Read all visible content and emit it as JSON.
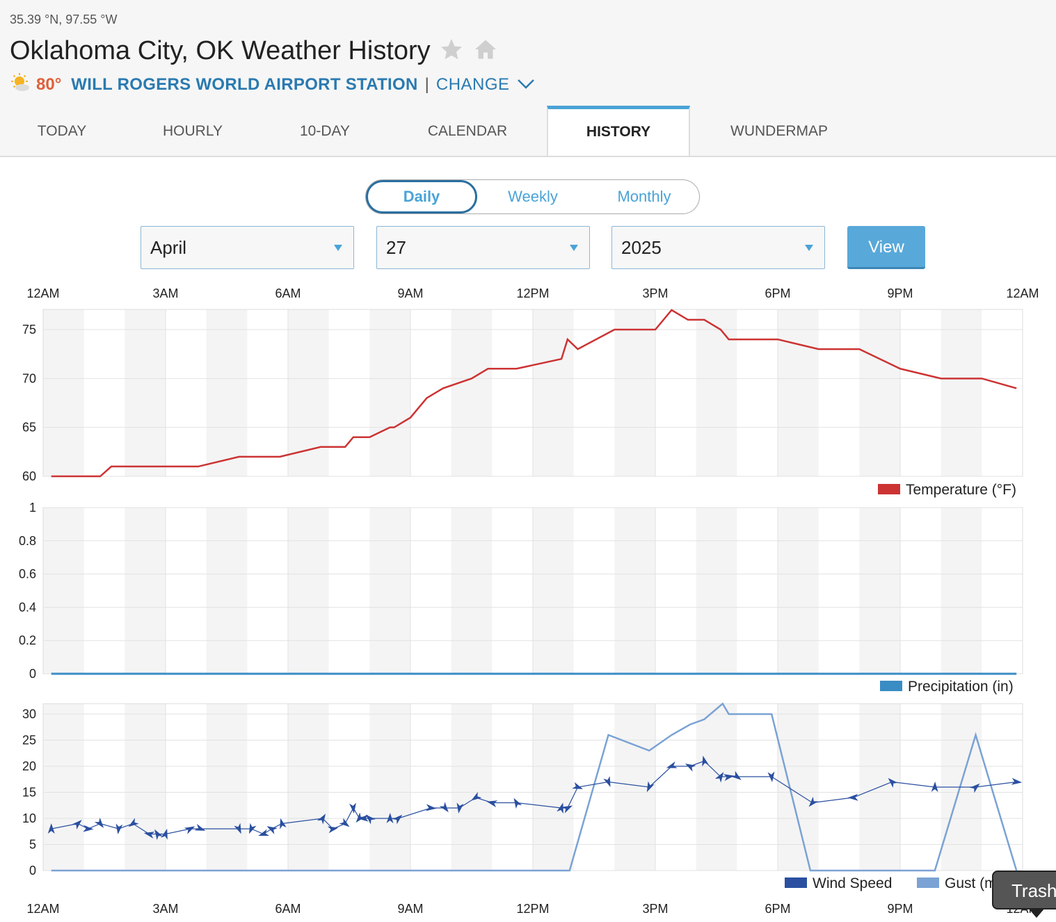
{
  "header": {
    "coords": "35.39 °N, 97.55 °W",
    "title": "Oklahoma City, OK Weather History",
    "current_temp": "80°",
    "station": "WILL ROGERS WORLD AIRPORT STATION",
    "separator": "|",
    "change_label": "CHANGE",
    "icons": [
      "star-icon",
      "home-icon",
      "partly-sunny-icon",
      "chevron-down-icon"
    ]
  },
  "tabs": [
    "TODAY",
    "HOURLY",
    "10-DAY",
    "CALENDAR",
    "HISTORY",
    "WUNDERMAP"
  ],
  "active_tab": "HISTORY",
  "period_toggle": {
    "daily": "Daily",
    "weekly": "Weekly",
    "monthly": "Monthly",
    "active": "Daily"
  },
  "date_selector": {
    "month": "April",
    "day": "27",
    "year": "2025",
    "view_label": "View"
  },
  "colors": {
    "temperature": "#cc3333",
    "precipitation": "#3a8cc4",
    "wind": "#2a4fa0",
    "gust": "#7ba2d4",
    "accent": "#4aa3d6"
  },
  "tooltip": "Trash",
  "chart_data": [
    {
      "type": "line",
      "name": "temperature",
      "x_ticks": [
        "12AM",
        "3AM",
        "6AM",
        "9AM",
        "12PM",
        "3PM",
        "6PM",
        "9PM",
        "12AM"
      ],
      "ylim": [
        59,
        77
      ],
      "y_ticks": [
        60,
        65,
        70,
        75
      ],
      "grid": true,
      "legend": "bottom-right",
      "series": [
        {
          "name": "Temperature (°F)",
          "points": [
            [
              0.2,
              60
            ],
            [
              1.4,
              60
            ],
            [
              1.67,
              61
            ],
            [
              3.8,
              61
            ],
            [
              4.8,
              62
            ],
            [
              5.8,
              62
            ],
            [
              6.8,
              63
            ],
            [
              7.4,
              63
            ],
            [
              7.6,
              64
            ],
            [
              8,
              64
            ],
            [
              8.5,
              65
            ],
            [
              8.6,
              65
            ],
            [
              9.0,
              66
            ],
            [
              9.4,
              68
            ],
            [
              9.8,
              69
            ],
            [
              10.5,
              70
            ],
            [
              10.9,
              71
            ],
            [
              11.6,
              71
            ],
            [
              12.7,
              72
            ],
            [
              12.85,
              74
            ],
            [
              13.1,
              73
            ],
            [
              14.0,
              75
            ],
            [
              15.0,
              75
            ],
            [
              15.4,
              77
            ],
            [
              15.8,
              76
            ],
            [
              16.2,
              76
            ],
            [
              16.6,
              75
            ],
            [
              16.8,
              74
            ],
            [
              17.0,
              74
            ],
            [
              18.0,
              74
            ],
            [
              19.0,
              73
            ],
            [
              20.0,
              73
            ],
            [
              21.0,
              71
            ],
            [
              22.0,
              70
            ],
            [
              23.0,
              70
            ],
            [
              23.85,
              69
            ]
          ]
        }
      ]
    },
    {
      "type": "line",
      "name": "precipitation",
      "x_ticks": [
        "12AM",
        "3AM",
        "6AM",
        "9AM",
        "12PM",
        "3PM",
        "6PM",
        "9PM",
        "12AM"
      ],
      "ylim": [
        0,
        1
      ],
      "y_ticks": [
        0,
        0.2,
        0.4,
        0.6,
        0.8,
        1
      ],
      "grid": true,
      "legend": "bottom-right",
      "series": [
        {
          "name": "Precipitation (in)",
          "points": [
            [
              0.2,
              0
            ],
            [
              23.85,
              0
            ]
          ]
        }
      ]
    },
    {
      "type": "line",
      "name": "wind",
      "x_ticks": [
        "12AM",
        "3AM",
        "6AM",
        "9AM",
        "12PM",
        "3PM",
        "6PM",
        "9PM",
        "12AM"
      ],
      "ylim": [
        0,
        32
      ],
      "y_ticks": [
        0,
        5,
        10,
        15,
        20,
        25,
        30
      ],
      "grid": true,
      "legend": "bottom-right",
      "series": [
        {
          "name": "Wind Speed",
          "points": [
            [
              0.2,
              8
            ],
            [
              0.85,
              9
            ],
            [
              1.1,
              8
            ],
            [
              1.4,
              9
            ],
            [
              1.85,
              8
            ],
            [
              2.2,
              9
            ],
            [
              2.6,
              7
            ],
            [
              2.8,
              7
            ],
            [
              3.0,
              7
            ],
            [
              3.6,
              8
            ],
            [
              3.85,
              8
            ],
            [
              4.8,
              8
            ],
            [
              5.1,
              8
            ],
            [
              5.4,
              7
            ],
            [
              5.6,
              8
            ],
            [
              5.85,
              9
            ],
            [
              6.85,
              10
            ],
            [
              7.1,
              8
            ],
            [
              7.4,
              9
            ],
            [
              7.6,
              12
            ],
            [
              7.75,
              10
            ],
            [
              7.85,
              10
            ],
            [
              8.0,
              10
            ],
            [
              8.5,
              10
            ],
            [
              8.7,
              10
            ],
            [
              9.5,
              12
            ],
            [
              9.85,
              12
            ],
            [
              10.2,
              12
            ],
            [
              10.6,
              14
            ],
            [
              11.0,
              13
            ],
            [
              11.6,
              13
            ],
            [
              12.7,
              12
            ],
            [
              12.85,
              12
            ],
            [
              13.1,
              16
            ],
            [
              13.85,
              17
            ],
            [
              14.85,
              16
            ],
            [
              15.4,
              20
            ],
            [
              15.85,
              20
            ],
            [
              16.2,
              21
            ],
            [
              16.6,
              18
            ],
            [
              16.8,
              18
            ],
            [
              17.0,
              18
            ],
            [
              17.85,
              18
            ],
            [
              18.85,
              13
            ],
            [
              19.85,
              14
            ],
            [
              20.8,
              17
            ],
            [
              21.85,
              16
            ],
            [
              22.85,
              16
            ],
            [
              23.85,
              17
            ]
          ]
        },
        {
          "name": "Gust (mph)",
          "points": [
            [
              0.2,
              0
            ],
            [
              12.9,
              0
            ],
            [
              13.85,
              26
            ],
            [
              14.85,
              23
            ],
            [
              15.4,
              26
            ],
            [
              15.85,
              28
            ],
            [
              16.2,
              29
            ],
            [
              16.65,
              32
            ],
            [
              16.8,
              30
            ],
            [
              17.0,
              30
            ],
            [
              17.85,
              30
            ],
            [
              18.8,
              0
            ],
            [
              21.85,
              0
            ],
            [
              22.85,
              26
            ],
            [
              23.85,
              0
            ]
          ]
        }
      ]
    }
  ]
}
